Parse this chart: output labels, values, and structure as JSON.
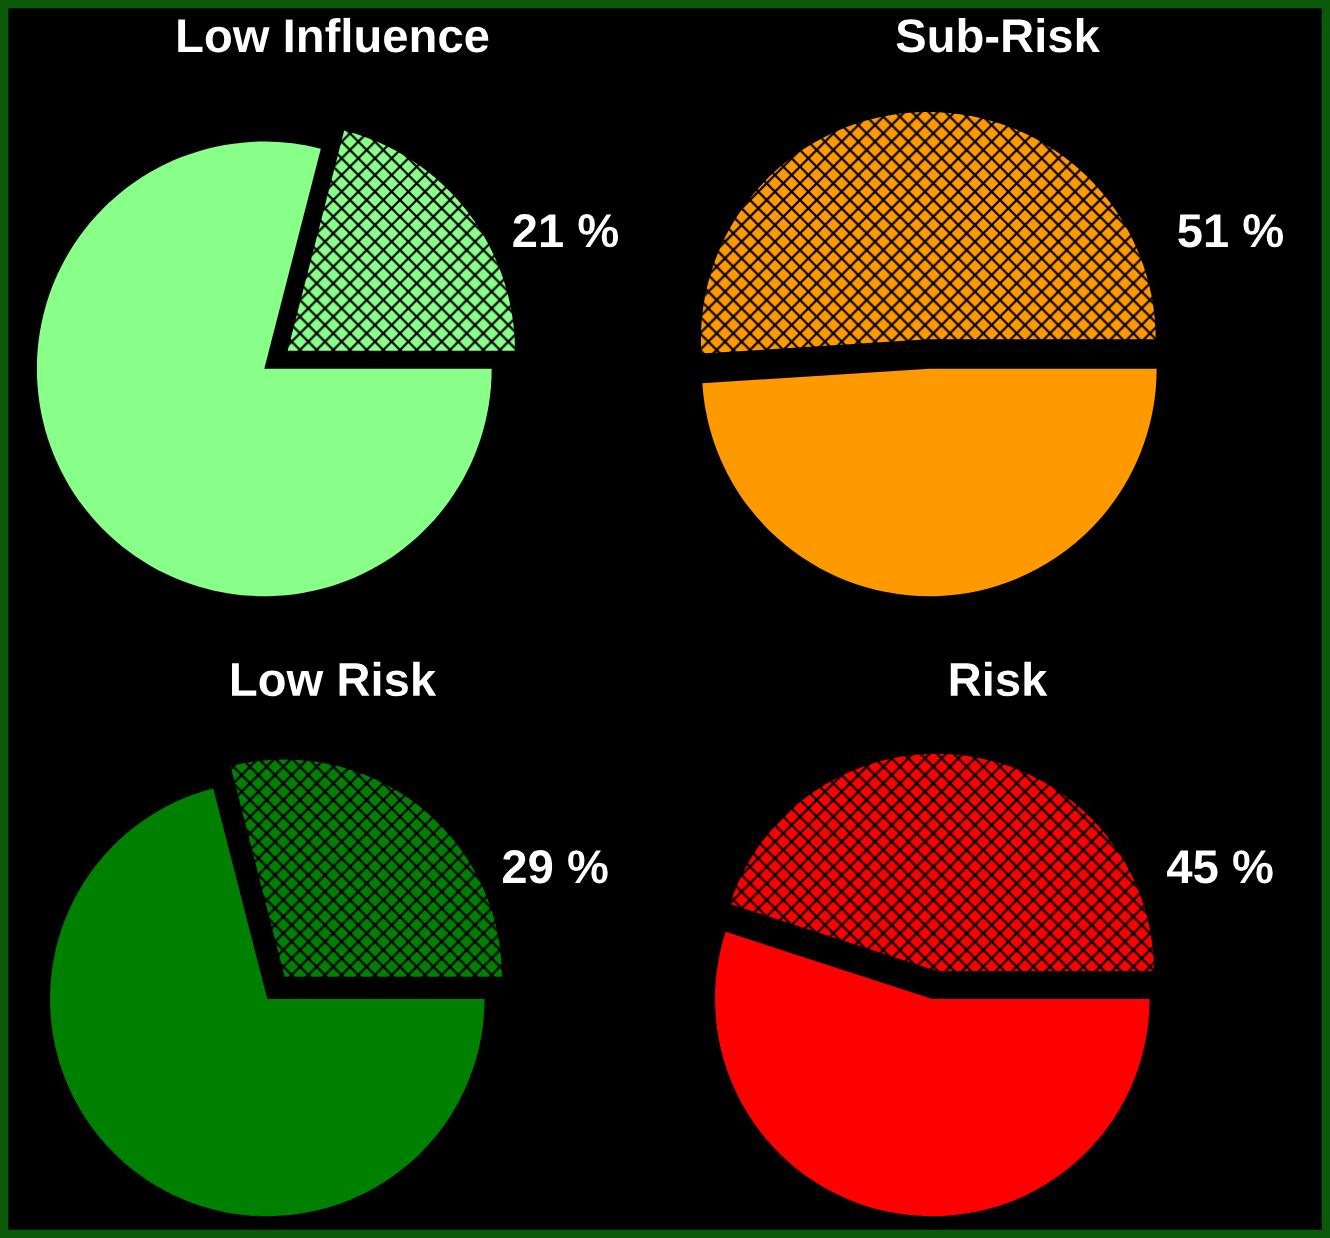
{
  "chart_data": [
    {
      "type": "pie",
      "title": "Low Influence",
      "categories": [
        null,
        null
      ],
      "values": [
        21,
        79
      ],
      "colors": [
        "#88ff88",
        "#88ff88"
      ],
      "value_labels": [
        "21 %",
        null
      ]
    },
    {
      "type": "pie",
      "title": "Sub-Risk",
      "categories": [
        null,
        null
      ],
      "values": [
        51,
        49
      ],
      "colors": [
        "#ff9900",
        "#ff9900"
      ],
      "value_labels": [
        "51 %",
        null
      ]
    },
    {
      "type": "pie",
      "title": "Low Risk",
      "categories": [
        null,
        null
      ],
      "values": [
        29,
        71
      ],
      "colors": [
        "#008000",
        "#008000"
      ],
      "value_labels": [
        "29 %",
        null
      ]
    },
    {
      "type": "pie",
      "title": "Risk",
      "categories": [
        null,
        null
      ],
      "values": [
        45,
        55
      ],
      "colors": [
        "#ff0000",
        "#ff0000"
      ],
      "value_labels": [
        "45 %",
        null
      ]
    }
  ]
}
